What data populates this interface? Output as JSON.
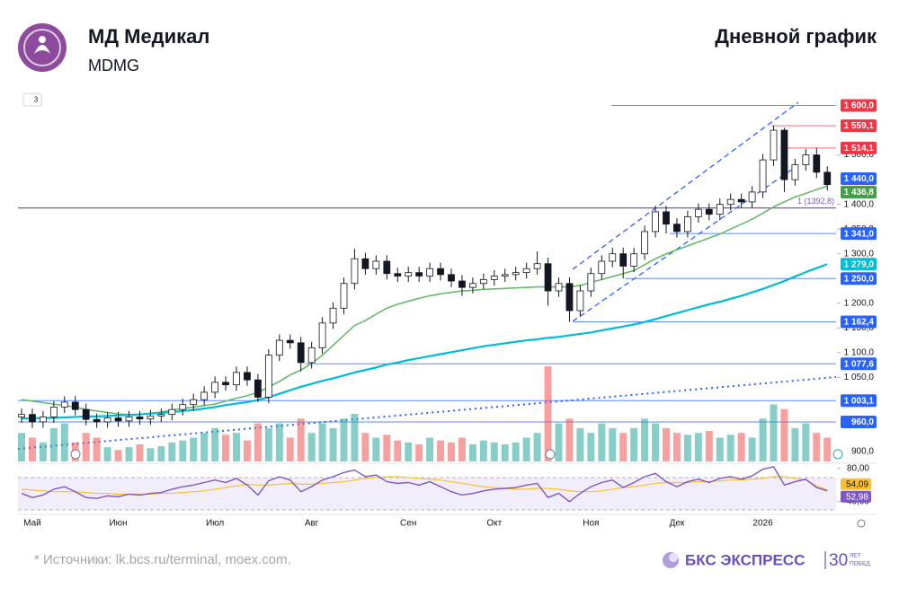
{
  "chart_data": {
    "type": "candlestick",
    "title": "МД Медикал",
    "subtitle": "MDMG",
    "chart_label": "Дневной график",
    "categories": [
      null,
      "Май",
      null,
      null,
      null,
      null,
      null,
      null,
      null,
      "Июн",
      null,
      null,
      null,
      null,
      null,
      null,
      null,
      null,
      "Июл",
      null,
      null,
      null,
      null,
      null,
      null,
      null,
      null,
      "Авг",
      null,
      null,
      null,
      null,
      null,
      null,
      null,
      null,
      "Сен",
      null,
      null,
      null,
      null,
      null,
      null,
      null,
      "Окт",
      null,
      null,
      null,
      null,
      null,
      null,
      null,
      null,
      "Ноя",
      null,
      null,
      null,
      null,
      null,
      null,
      null,
      "Дек",
      null,
      null,
      null,
      null,
      null,
      null,
      null,
      "2026",
      null,
      null,
      null,
      null,
      null,
      null
    ],
    "open": [
      970,
      975,
      960,
      970,
      990,
      1000,
      985,
      965,
      960,
      968,
      962,
      970,
      966,
      972,
      975,
      985,
      995,
      1005,
      1020,
      1040,
      1035,
      1060,
      1045,
      1010,
      1095,
      1125,
      1120,
      1080,
      1110,
      1160,
      1190,
      1240,
      1290,
      1270,
      1285,
      1260,
      1255,
      1262,
      1255,
      1270,
      1258,
      1245,
      1232,
      1240,
      1248,
      1255,
      1258,
      1262,
      1270,
      1280,
      1225,
      1240,
      1185,
      1225,
      1260,
      1285,
      1300,
      1275,
      1300,
      1345,
      1385,
      1360,
      1345,
      1375,
      1390,
      1380,
      1400,
      1410,
      1405,
      1425,
      1490,
      1550,
      1450,
      1480,
      1500,
      1465
    ],
    "high": [
      987,
      987,
      982,
      1002,
      1012,
      1012,
      997,
      977,
      980,
      980,
      982,
      982,
      984,
      987,
      997,
      1007,
      1017,
      1032,
      1052,
      1052,
      1072,
      1072,
      1057,
      1107,
      1137,
      1137,
      1132,
      1122,
      1172,
      1202,
      1252,
      1310,
      1302,
      1297,
      1297,
      1272,
      1274,
      1274,
      1282,
      1282,
      1270,
      1257,
      1252,
      1260,
      1267,
      1270,
      1274,
      1282,
      1305,
      1292,
      1252,
      1252,
      1237,
      1272,
      1297,
      1312,
      1312,
      1312,
      1357,
      1397,
      1397,
      1372,
      1387,
      1402,
      1402,
      1412,
      1422,
      1422,
      1437,
      1502,
      1559.1,
      1555,
      1492,
      1512,
      1514.1,
      1477
    ],
    "low": [
      958,
      948,
      948,
      958,
      978,
      973,
      953,
      948,
      948,
      950,
      950,
      954,
      954,
      960,
      963,
      973,
      983,
      993,
      1008,
      1023,
      1023,
      1033,
      1000,
      998,
      1083,
      1108,
      1062,
      1068,
      1098,
      1148,
      1178,
      1228,
      1258,
      1258,
      1248,
      1243,
      1243,
      1243,
      1243,
      1246,
      1233,
      1215,
      1220,
      1228,
      1236,
      1243,
      1246,
      1250,
      1258,
      1195,
      1213,
      1162.4,
      1173,
      1213,
      1248,
      1273,
      1250,
      1263,
      1288,
      1333,
      1341,
      1333,
      1333,
      1363,
      1368,
      1368,
      1388,
      1393,
      1393,
      1413,
      1478,
      1425,
      1438,
      1468,
      1453,
      1428
    ],
    "close": [
      975,
      960,
      970,
      990,
      1000,
      985,
      965,
      960,
      968,
      962,
      970,
      966,
      972,
      975,
      985,
      995,
      1005,
      1020,
      1040,
      1035,
      1060,
      1045,
      1010,
      1095,
      1125,
      1120,
      1080,
      1110,
      1160,
      1190,
      1240,
      1290,
      1270,
      1285,
      1260,
      1255,
      1262,
      1255,
      1270,
      1258,
      1245,
      1232,
      1240,
      1248,
      1255,
      1258,
      1262,
      1270,
      1280,
      1225,
      1240,
      1185,
      1225,
      1260,
      1285,
      1300,
      1275,
      1300,
      1345,
      1385,
      1360,
      1345,
      1375,
      1390,
      1380,
      1400,
      1410,
      1405,
      1425,
      1490,
      1550,
      1450,
      1480,
      1500,
      1465,
      1440
    ],
    "up_color": "#ffffff",
    "down_color": "#131722",
    "border_color": "#131722",
    "ylim": [
      880,
      1630
    ],
    "yticks": [
      {
        "value": 1500,
        "label": "1 500,0"
      },
      {
        "value": 1400,
        "label": "1 400,0"
      },
      {
        "value": 1350,
        "label": "1 350,0"
      },
      {
        "value": 1300,
        "label": "1 300,0"
      },
      {
        "value": 1200,
        "label": "1 200,0"
      },
      {
        "value": 1150,
        "label": "1 150,0"
      },
      {
        "value": 1100,
        "label": "1 100,0"
      },
      {
        "value": 1050,
        "label": "1 050,0"
      },
      {
        "value": 900,
        "label": "900,0"
      }
    ],
    "grid": false,
    "moving_averages": [
      {
        "color": "#66bb6a",
        "values": [
          1005,
          1002,
          999,
          996,
          993,
          990,
          985,
          982,
          979,
          976,
          975,
          975,
          977,
          980,
          984,
          987,
          990,
          993,
          996,
          1002,
          1008,
          1013,
          1020,
          1030,
          1042,
          1055,
          1065,
          1078,
          1095,
          1115,
          1135,
          1155,
          1165,
          1178,
          1190,
          1198,
          1204,
          1210,
          1215,
          1219,
          1222,
          1225,
          1226,
          1228,
          1229,
          1230,
          1231,
          1232,
          1233,
          1233,
          1233,
          1233,
          1236,
          1242,
          1248,
          1254,
          1260,
          1266,
          1278,
          1290,
          1300,
          1308,
          1316,
          1324,
          1332,
          1340,
          1350,
          1360,
          1370,
          1382,
          1395,
          1405,
          1415,
          1422,
          1430,
          1436.8
        ]
      },
      {
        "color": "#00bcd4",
        "values": [
          967,
          967,
          968,
          968,
          969,
          970,
          971,
          971,
          972,
          973,
          974,
          975,
          977,
          978,
          980,
          982,
          984,
          987,
          990,
          994,
          997,
          1000,
          1004,
          1010,
          1017,
          1024,
          1031,
          1037,
          1043,
          1048,
          1054,
          1060,
          1065,
          1070,
          1076,
          1080,
          1085,
          1089,
          1093,
          1097,
          1101,
          1105,
          1109,
          1113,
          1116,
          1119,
          1122,
          1125,
          1127,
          1130,
          1132,
          1135,
          1138,
          1141,
          1145,
          1149,
          1153,
          1157,
          1162,
          1168,
          1174,
          1180,
          1186,
          1192,
          1198,
          1203,
          1209,
          1215,
          1222,
          1229,
          1237,
          1245,
          1254,
          1263,
          1271,
          1279
        ]
      }
    ],
    "levels": [
      {
        "value": 1600,
        "label": "1 600,0",
        "color": "#f23645"
      },
      {
        "value": 1559.1,
        "label": "1 559,1",
        "color": "#f23645"
      },
      {
        "value": 1514.1,
        "label": "1 514,1",
        "color": "#f23645"
      },
      {
        "value": 1440,
        "label": "1 440,0",
        "color": "#2962ff"
      },
      {
        "value": 1436.8,
        "label": "1 436,8",
        "color": "#43a047"
      },
      {
        "value": 1341,
        "label": "1 341,0",
        "color": "#2962ff"
      },
      {
        "value": 1279,
        "label": "1 279,0",
        "color": "#00bcd4"
      },
      {
        "value": 1250,
        "label": "1 250,0",
        "color": "#2962ff"
      },
      {
        "value": 1162.4,
        "label": "1 162,4",
        "color": "#2962ff"
      },
      {
        "value": 1077.6,
        "label": "1 077,6",
        "color": "#2962ff"
      },
      {
        "value": 1003.1,
        "label": "1 003,1",
        "color": "#2962ff"
      },
      {
        "value": 960,
        "label": "960,0",
        "color": "#2962ff"
      }
    ],
    "trend_label": {
      "value": 1392.8,
      "label": "1 (1392,8)",
      "color": "#7e57c2"
    },
    "volume": {
      "values": [
        30,
        25,
        20,
        35,
        40,
        20,
        30,
        25,
        15,
        12,
        15,
        18,
        14,
        16,
        20,
        22,
        25,
        30,
        35,
        28,
        30,
        22,
        40,
        35,
        40,
        25,
        45,
        30,
        40,
        35,
        45,
        50,
        30,
        25,
        28,
        22,
        20,
        18,
        25,
        22,
        20,
        25,
        18,
        22,
        20,
        18,
        20,
        25,
        30,
        100,
        40,
        45,
        35,
        30,
        40,
        35,
        30,
        35,
        45,
        40,
        35,
        30,
        28,
        30,
        32,
        25,
        28,
        30,
        25,
        45,
        60,
        55,
        35,
        40,
        30,
        25
      ],
      "ylim": [
        0,
        100
      ],
      "up_color": "#26a69a",
      "down_color": "#ef5350"
    },
    "rsi": {
      "ylim": [
        28,
        84
      ],
      "yticks": [
        {
          "value": 80,
          "label": "80,00"
        },
        {
          "value": 40,
          "label": "40,00"
        }
      ],
      "color": "#7e57c2",
      "values": [
        50,
        45,
        48,
        55,
        58,
        52,
        45,
        44,
        47,
        46,
        49,
        48,
        50,
        51,
        55,
        58,
        60,
        63,
        66,
        63,
        68,
        60,
        48,
        65,
        70,
        66,
        52,
        58,
        66,
        70,
        75,
        78,
        70,
        72,
        64,
        62,
        63,
        60,
        64,
        58,
        52,
        48,
        50,
        53,
        55,
        56,
        57,
        60,
        62,
        45,
        50,
        40,
        50,
        58,
        63,
        66,
        57,
        63,
        70,
        74,
        64,
        58,
        64,
        67,
        63,
        68,
        70,
        67,
        71,
        79,
        82,
        60,
        64,
        67,
        57,
        52.98
      ],
      "value_label": "52,98",
      "ma_color": "#fbc02d",
      "ma_values": [
        55,
        54,
        53,
        52,
        52,
        52,
        51,
        50,
        50,
        49,
        49,
        49,
        49,
        50,
        50,
        51,
        52,
        53,
        55,
        57,
        59,
        61,
        60,
        60,
        61,
        62,
        61,
        61,
        62,
        63,
        64,
        66,
        68,
        69,
        70,
        70,
        69,
        68,
        67,
        66,
        64,
        62,
        60,
        58,
        57,
        56,
        55,
        55,
        56,
        56,
        55,
        53,
        52,
        52,
        53,
        55,
        57,
        58,
        60,
        62,
        63,
        63,
        63,
        64,
        64,
        65,
        66,
        66,
        67,
        68,
        70,
        70,
        68,
        66,
        59,
        54.09
      ],
      "ma_value_label": "54,09"
    }
  },
  "ui": {
    "interval_badge": "3"
  },
  "footer": {
    "source": "* Источники: lk.bcs.ru/terminal, moex.com.",
    "brand": "БКС ЭКСПРЕСС",
    "years": "30",
    "years_caption_top": "ЛЕТ",
    "years_caption_bottom": "ПОБЕД"
  }
}
